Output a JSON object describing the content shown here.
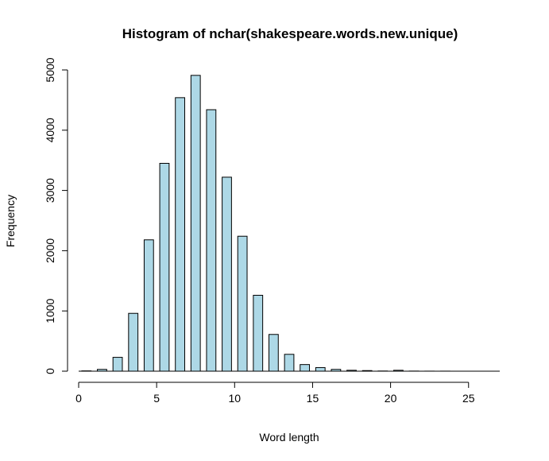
{
  "chart_data": {
    "type": "bar",
    "title": "Histogram of nchar(shakespeare.words.new.unique)",
    "xlabel": "Word length",
    "ylabel": "Frequency",
    "xlim": [
      0,
      27
    ],
    "ylim": [
      0,
      5000
    ],
    "x_ticks": [
      0,
      5,
      10,
      15,
      20,
      25
    ],
    "y_ticks": [
      0,
      1000,
      2000,
      3000,
      4000,
      5000
    ],
    "bar_color": "#add8e6",
    "bar_border": "#000000",
    "bins": [
      {
        "x": 0.5,
        "value": 5
      },
      {
        "x": 1.5,
        "value": 30
      },
      {
        "x": 2.5,
        "value": 230
      },
      {
        "x": 3.5,
        "value": 960
      },
      {
        "x": 4.5,
        "value": 2180
      },
      {
        "x": 5.5,
        "value": 3450
      },
      {
        "x": 6.5,
        "value": 4540
      },
      {
        "x": 7.5,
        "value": 4910
      },
      {
        "x": 8.5,
        "value": 4340
      },
      {
        "x": 9.5,
        "value": 3220
      },
      {
        "x": 10.5,
        "value": 2240
      },
      {
        "x": 11.5,
        "value": 1260
      },
      {
        "x": 12.5,
        "value": 610
      },
      {
        "x": 13.5,
        "value": 280
      },
      {
        "x": 14.5,
        "value": 110
      },
      {
        "x": 15.5,
        "value": 60
      },
      {
        "x": 16.5,
        "value": 30
      },
      {
        "x": 17.5,
        "value": 15
      },
      {
        "x": 18.5,
        "value": 10
      },
      {
        "x": 19.5,
        "value": 3
      },
      {
        "x": 20.5,
        "value": 15
      },
      {
        "x": 21.5,
        "value": 2
      },
      {
        "x": 22.5,
        "value": 1
      },
      {
        "x": 23.5,
        "value": 1
      },
      {
        "x": 24.5,
        "value": 0
      },
      {
        "x": 25.5,
        "value": 0
      },
      {
        "x": 26.5,
        "value": 0
      }
    ]
  }
}
